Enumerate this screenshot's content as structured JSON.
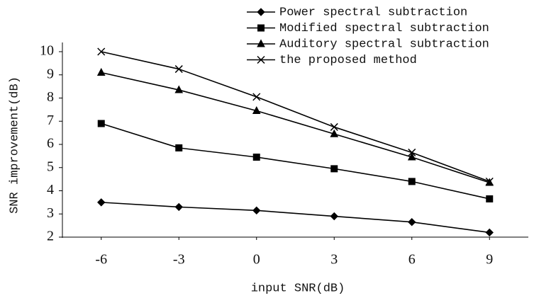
{
  "chart_data": {
    "type": "line",
    "xlabel": "input SNR(dB)",
    "ylabel": "SNR improvement(dB)",
    "x": [
      -6,
      -3,
      0,
      3,
      6,
      9
    ],
    "xlim": [
      -7.5,
      10.5
    ],
    "xticks": [
      -6,
      -3,
      0,
      3,
      6,
      9
    ],
    "ylim": [
      2,
      10
    ],
    "yticks": [
      2,
      3,
      4,
      5,
      6,
      7,
      8,
      9,
      10
    ],
    "grid": false,
    "series": [
      {
        "name": "Power spectral subtraction",
        "color": "#000000",
        "marker": "diamond",
        "values": [
          3.5,
          3.3,
          3.15,
          2.9,
          2.65,
          2.2
        ]
      },
      {
        "name": "Modified spectral subtraction",
        "color": "#000000",
        "marker": "square",
        "values": [
          6.9,
          5.85,
          5.45,
          4.95,
          4.4,
          3.65
        ]
      },
      {
        "name": "Auditory spectral subtraction",
        "color": "#000000",
        "marker": "triangle",
        "values": [
          9.1,
          8.35,
          7.45,
          6.45,
          5.45,
          4.35
        ]
      },
      {
        "name": "the proposed method",
        "color": "#000000",
        "marker": "x",
        "values": [
          10.0,
          9.25,
          8.05,
          6.75,
          5.65,
          4.4
        ]
      }
    ]
  }
}
